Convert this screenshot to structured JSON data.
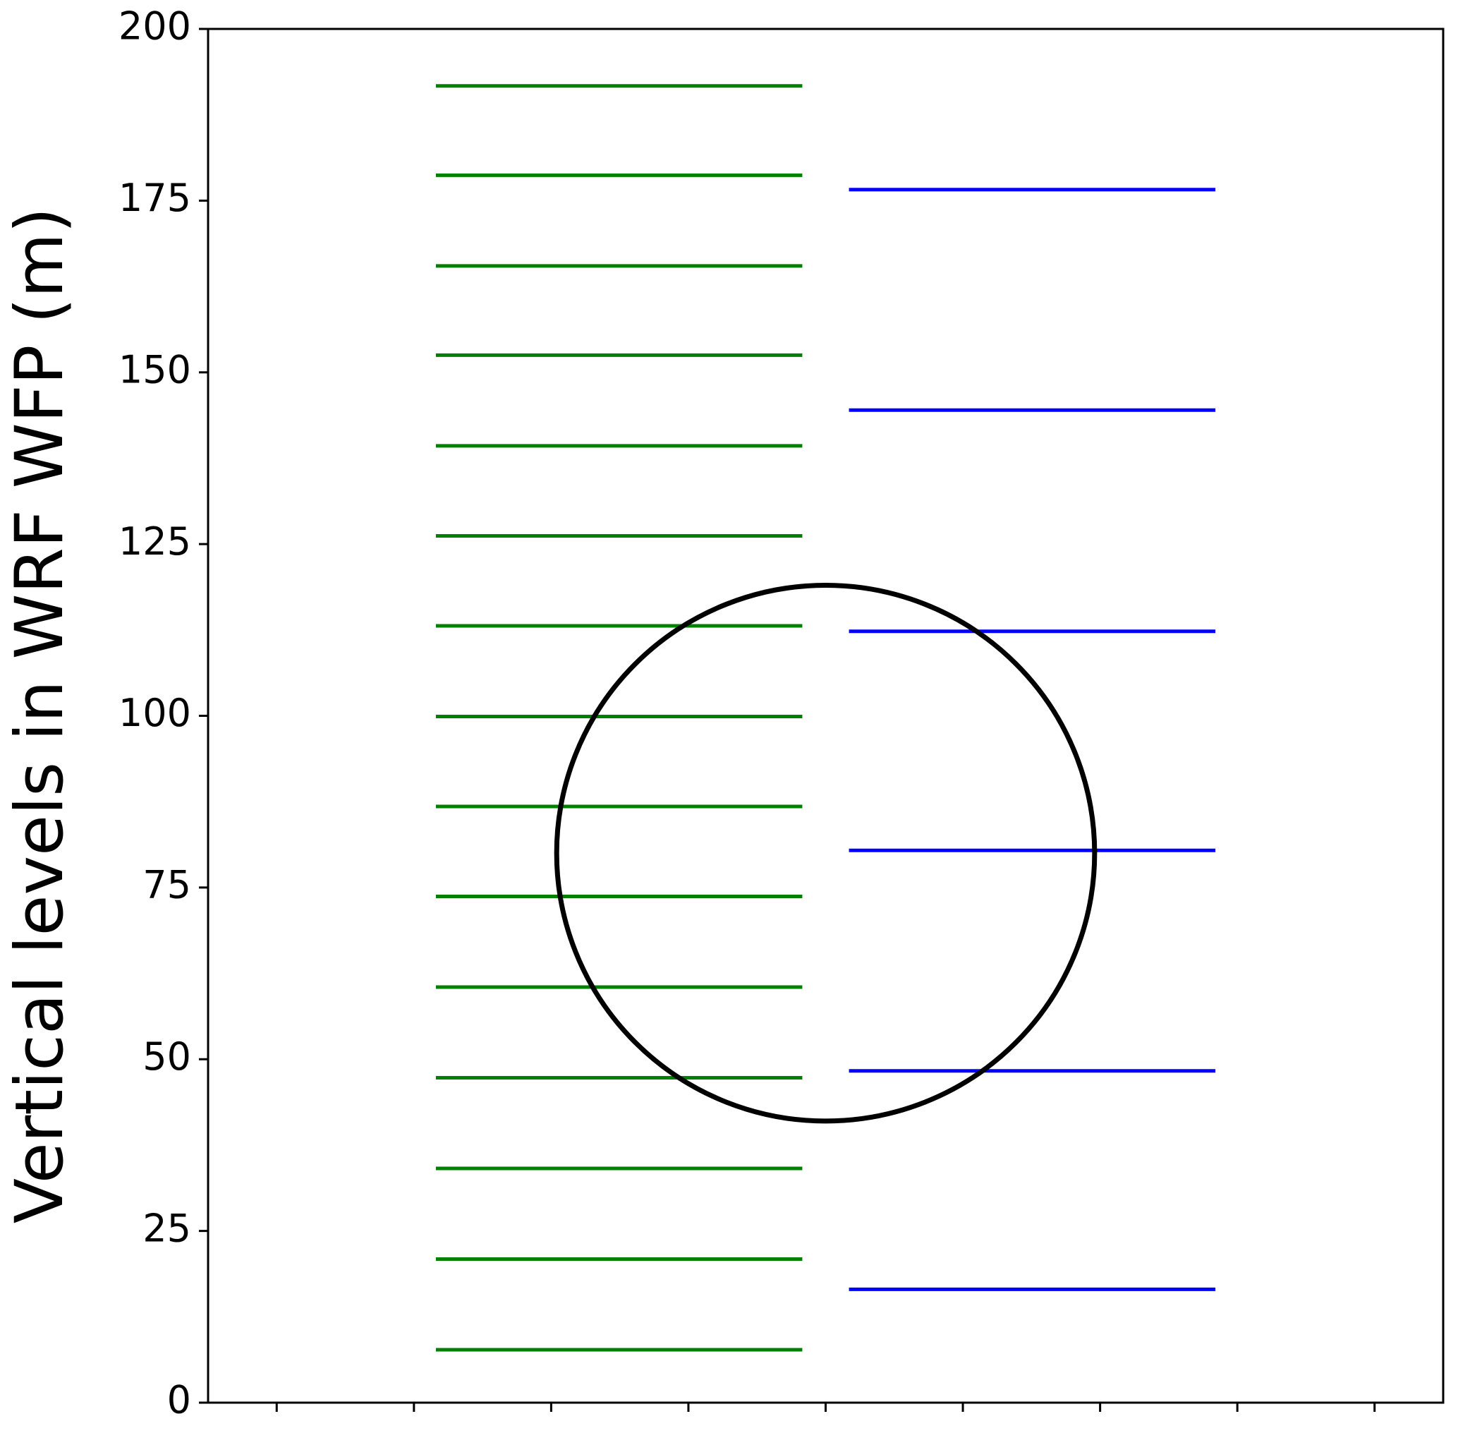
{
  "chart_data": {
    "type": "hlines",
    "ylabel": "Vertical levels in WRF WFP (m)",
    "xlim": [
      -0.5,
      8.5
    ],
    "xticks": [
      0,
      1,
      2,
      3,
      4,
      5,
      6,
      7,
      8
    ],
    "ylim": [
      0,
      200
    ],
    "yticks": [
      0,
      25,
      50,
      75,
      100,
      125,
      150,
      175,
      200
    ],
    "series": [
      {
        "color": "#008000",
        "xmin": 1.16,
        "xmax": 3.83,
        "values": [
          7.7,
          20.9,
          34.1,
          47.3,
          60.5,
          73.7,
          86.8,
          99.9,
          113.1,
          126.2,
          139.3,
          152.5,
          165.5,
          178.7,
          191.7
        ]
      },
      {
        "color": "#0000ff",
        "xmin": 4.17,
        "xmax": 6.84,
        "values": [
          16.5,
          48.3,
          80.4,
          112.3,
          144.5,
          176.6
        ]
      }
    ],
    "circle": {
      "x": 4,
      "y": 80,
      "rx": 1.96,
      "ry": 39,
      "color": "#000000"
    }
  }
}
